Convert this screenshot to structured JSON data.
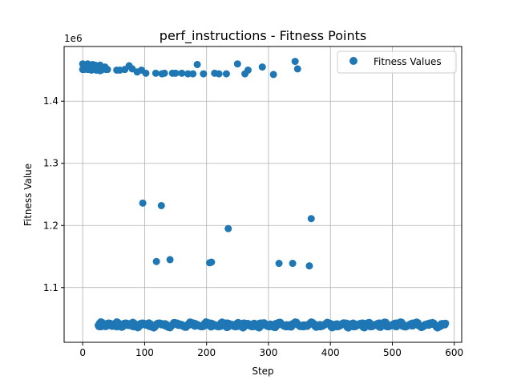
{
  "chart_data": {
    "type": "scatter",
    "title": "perf_instructions - Fitness Points",
    "xlabel": "Step",
    "ylabel": "Fitness Value",
    "offset_label": "1e6",
    "xlim": [
      -30,
      612
    ],
    "ylim": [
      1012000,
      1488000
    ],
    "xticks": [
      0,
      100,
      200,
      300,
      400,
      500,
      600
    ],
    "xtick_labels": [
      "0",
      "100",
      "200",
      "300",
      "400",
      "500",
      "600"
    ],
    "yticks": [
      1100000,
      1200000,
      1300000,
      1400000
    ],
    "ytick_labels": [
      "1.1",
      "1.2",
      "1.3",
      "1.4"
    ],
    "grid": true,
    "legend_position": "top-right",
    "colors": {
      "series": "#1f77b4",
      "grid": "#b0b0b0",
      "axes": "#000000"
    },
    "series": [
      {
        "name": "Fitness Values",
        "x": [
          0,
          2,
          4,
          6,
          8,
          10,
          12,
          14,
          16,
          18,
          20,
          22,
          24,
          26,
          28,
          30,
          36,
          40,
          55,
          60,
          68,
          75,
          80,
          88,
          95,
          102,
          118,
          128,
          132,
          145,
          150,
          160,
          170,
          178,
          185,
          195,
          213,
          220,
          232,
          250,
          262,
          267,
          290,
          308,
          343,
          347,
          0,
          8,
          12,
          20,
          28,
          38,
          97,
          127,
          119,
          141,
          205,
          208,
          235,
          317,
          339,
          366,
          369
        ],
        "y": [
          1460000,
          1451000,
          1458000,
          1452000,
          1460000,
          1451000,
          1458000,
          1450000,
          1459000,
          1452000,
          1458000,
          1450000,
          1455000,
          1451000,
          1458000,
          1450000,
          1455000,
          1451000,
          1450000,
          1450000,
          1451000,
          1457000,
          1452000,
          1447000,
          1450000,
          1445000,
          1445000,
          1444000,
          1445000,
          1445000,
          1445000,
          1445000,
          1444000,
          1444000,
          1459000,
          1444000,
          1445000,
          1444000,
          1444000,
          1460000,
          1444000,
          1450000,
          1455000,
          1443000,
          1464000,
          1452000,
          1451000,
          1451000,
          1455000,
          1451000,
          1449000,
          1451000,
          1236000,
          1232000,
          1142000,
          1145000,
          1140000,
          1141000,
          1195000,
          1139000,
          1139000,
          1135000,
          1211000
        ]
      }
    ],
    "lower_band": {
      "x_start": 25,
      "x_end": 585,
      "x_step": 2,
      "y_center": 1040000,
      "y_spread": 5000
    }
  }
}
